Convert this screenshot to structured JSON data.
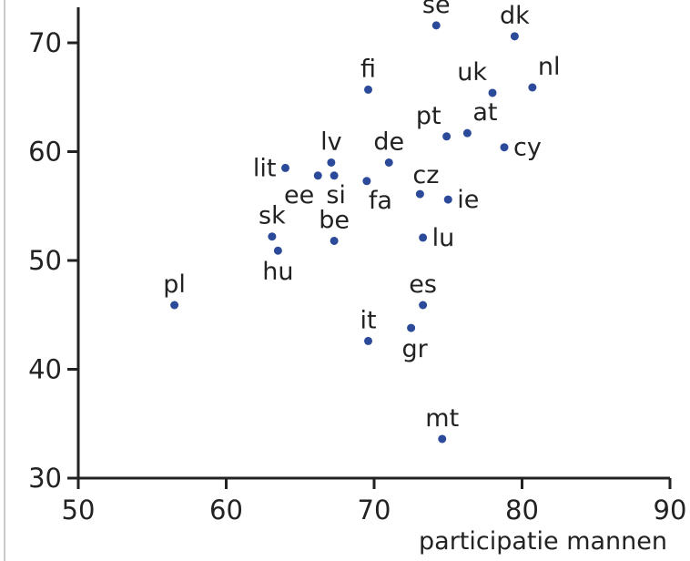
{
  "chart_data": {
    "type": "scatter",
    "title": "",
    "xlabel": "participatie mannen",
    "ylabel": "",
    "xlim": [
      50,
      90
    ],
    "ylim": [
      30,
      74
    ],
    "xticks": [
      "50",
      "60",
      "70",
      "80",
      "90"
    ],
    "yticks": [
      "30",
      "40",
      "50",
      "60",
      "70"
    ],
    "grid": false,
    "point_color": "#2b4a9a",
    "points": [
      {
        "label": "se",
        "x": 74.2,
        "y": 71.6,
        "pos": "above"
      },
      {
        "label": "dk",
        "x": 79.5,
        "y": 70.6,
        "pos": "above"
      },
      {
        "label": "fi",
        "x": 69.6,
        "y": 65.7,
        "pos": "above"
      },
      {
        "label": "uk",
        "x": 78.0,
        "y": 65.4,
        "pos": "above-left"
      },
      {
        "label": "nl",
        "x": 80.7,
        "y": 65.9,
        "pos": "above-right"
      },
      {
        "label": "pt",
        "x": 74.9,
        "y": 61.4,
        "pos": "above-left"
      },
      {
        "label": "at",
        "x": 76.3,
        "y": 61.7,
        "pos": "above-right"
      },
      {
        "label": "cy",
        "x": 78.8,
        "y": 60.4,
        "pos": "right"
      },
      {
        "label": "de",
        "x": 71.0,
        "y": 59.0,
        "pos": "above"
      },
      {
        "label": "lv",
        "x": 67.1,
        "y": 59.0,
        "pos": "above"
      },
      {
        "label": "lit",
        "x": 64.0,
        "y": 58.5,
        "pos": "left"
      },
      {
        "label": "ee",
        "x": 66.2,
        "y": 57.8,
        "pos": "below-left"
      },
      {
        "label": "si",
        "x": 67.3,
        "y": 57.8,
        "pos": "below"
      },
      {
        "label": "fa",
        "x": 69.5,
        "y": 57.3,
        "pos": "below-right"
      },
      {
        "label": "cz",
        "x": 73.1,
        "y": 56.1,
        "pos": "above-right"
      },
      {
        "label": "ie",
        "x": 75.0,
        "y": 55.6,
        "pos": "right"
      },
      {
        "label": "sk",
        "x": 63.1,
        "y": 52.2,
        "pos": "above"
      },
      {
        "label": "hu",
        "x": 63.5,
        "y": 50.9,
        "pos": "below"
      },
      {
        "label": "be",
        "x": 67.3,
        "y": 51.8,
        "pos": "above"
      },
      {
        "label": "lu",
        "x": 73.3,
        "y": 52.1,
        "pos": "right"
      },
      {
        "label": "pl",
        "x": 56.5,
        "y": 45.9,
        "pos": "above"
      },
      {
        "label": "es",
        "x": 73.3,
        "y": 45.9,
        "pos": "above"
      },
      {
        "label": "it",
        "x": 69.6,
        "y": 42.6,
        "pos": "above"
      },
      {
        "label": "gr",
        "x": 72.5,
        "y": 43.8,
        "pos": "below"
      },
      {
        "label": "mt",
        "x": 74.6,
        "y": 33.6,
        "pos": "above"
      }
    ]
  }
}
